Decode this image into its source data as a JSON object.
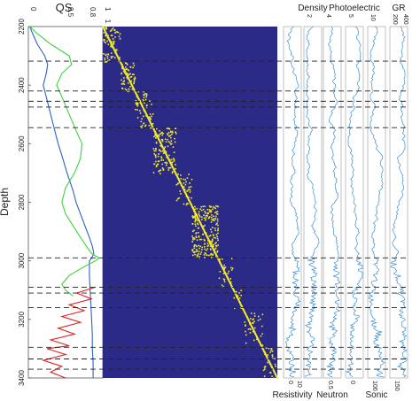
{
  "chart_data": [
    {
      "type": "line",
      "panel": "qs-curves",
      "title": "QS",
      "ylabel": "Depth",
      "y_reversed": true,
      "ylim": [
        2200,
        3400
      ],
      "xlim": [
        0,
        1
      ],
      "x_tick_labels": [
        "0",
        "0.5",
        "0.8",
        "1"
      ],
      "y_ticks": [
        2200,
        2400,
        2600,
        2800,
        3000,
        3200,
        3400
      ],
      "series": [
        {
          "color": "#2a62c9",
          "depth": [
            2200,
            2220,
            2260,
            2300,
            2330,
            2360,
            2400,
            2440,
            2500,
            2560,
            2600,
            2640,
            2700,
            2760,
            2800,
            2840,
            2880,
            2920,
            2950,
            2975,
            2990,
            3000,
            3050,
            3100,
            3150,
            3200,
            3250,
            3300,
            3350,
            3400
          ],
          "qs": [
            0.02,
            0.05,
            0.12,
            0.22,
            0.26,
            0.24,
            0.2,
            0.24,
            0.3,
            0.36,
            0.4,
            0.45,
            0.52,
            0.6,
            0.64,
            0.7,
            0.76,
            0.82,
            0.86,
            0.88,
            0.85,
            0.82,
            0.82,
            0.83,
            0.84,
            0.85,
            0.86,
            0.86,
            0.87,
            0.87
          ]
        },
        {
          "color": "#3ed13e",
          "depth": [
            2200,
            2220,
            2260,
            2300,
            2330,
            2360,
            2400,
            2440,
            2500,
            2560,
            2600,
            2650,
            2700,
            2750,
            2800,
            2840,
            2880,
            2920,
            2950,
            2975,
            2990,
            3000,
            3020,
            3050,
            3080,
            3100,
            3120
          ],
          "qs": [
            0.02,
            0.1,
            0.3,
            0.55,
            0.58,
            0.45,
            0.38,
            0.45,
            0.55,
            0.65,
            0.72,
            0.7,
            0.62,
            0.5,
            0.45,
            0.5,
            0.6,
            0.7,
            0.78,
            0.85,
            0.95,
            0.9,
            0.75,
            0.55,
            0.45,
            0.5,
            0.6
          ]
        },
        {
          "color": "#e01f1f",
          "depth": [
            3090,
            3110,
            3130,
            3150,
            3170,
            3190,
            3210,
            3230,
            3250,
            3270,
            3290,
            3300,
            3320,
            3340,
            3360,
            3380,
            3400
          ],
          "qs": [
            0.9,
            0.65,
            0.85,
            0.55,
            0.75,
            0.45,
            0.7,
            0.4,
            0.62,
            0.3,
            0.55,
            0.25,
            0.5,
            0.2,
            0.45,
            0.3,
            0.5
          ]
        }
      ],
      "boundary_depths": [
        2318,
        2420,
        2455,
        2475,
        2545,
        2990,
        3090,
        3110,
        3160,
        3295,
        3335,
        3370
      ]
    },
    {
      "type": "heatmap",
      "panel": "similarity-matrix",
      "background_color": "#2b2a86",
      "highlight_color": "#f3ec2b",
      "x_tick_labels": [
        "1"
      ],
      "blocks_depth": [
        [
          2200,
          2320
        ],
        [
          2320,
          2420
        ],
        [
          2420,
          2545
        ],
        [
          2545,
          2700
        ],
        [
          2700,
          2810
        ],
        [
          2810,
          2990
        ],
        [
          2990,
          3090
        ],
        [
          3090,
          3160
        ],
        [
          3160,
          3295
        ],
        [
          3295,
          3400
        ]
      ],
      "block_density": [
        0.55,
        0.7,
        0.45,
        0.6,
        0.35,
        0.75,
        0.3,
        0.25,
        0.2,
        0.3
      ]
    },
    {
      "type": "line",
      "panel": "well-logs",
      "color": "#3d8fd1",
      "tracks": [
        {
          "top_label": "",
          "bottom_label": "Resistivity",
          "top_ticks": [],
          "bottom_ticks": [
            "0",
            "10"
          ]
        },
        {
          "top_label": "Density",
          "bottom_label": "",
          "top_ticks": [
            "2"
          ],
          "bottom_ticks": []
        },
        {
          "top_label": "",
          "bottom_label": "Neutron",
          "top_ticks": [
            "4"
          ],
          "bottom_ticks": [
            "0.5"
          ]
        },
        {
          "top_label": "Photoelectric",
          "bottom_label": "",
          "top_ticks": [
            "5"
          ],
          "bottom_ticks": [
            "0"
          ]
        },
        {
          "top_label": "",
          "bottom_label": "Sonic",
          "top_ticks": [
            "10"
          ],
          "bottom_ticks": [
            "100"
          ]
        },
        {
          "top_label": "GR",
          "bottom_label": "",
          "top_ticks": [
            "200",
            "400"
          ],
          "bottom_ticks": [
            "150"
          ]
        }
      ]
    }
  ]
}
